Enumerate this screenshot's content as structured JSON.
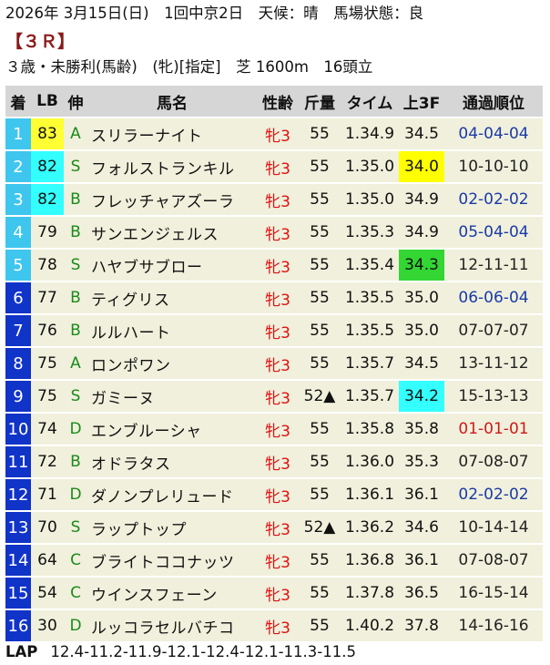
{
  "header": {
    "line1": "2026年 3月15日(日)　1回中京2日　天候：晴　馬場状態：良",
    "race": "【３Ｒ】",
    "line3": "３歳・未勝利(馬齢)　(牝)[指定]　芝 1600m　16頭立"
  },
  "columns": [
    "着",
    "LB",
    "伸",
    "馬名",
    "性齢",
    "斤量",
    "タイム",
    "上3F",
    "通過順位"
  ],
  "colors": {
    "frame": [
      "#3ec6ee",
      "#3ec6ee",
      "#3ec6ee",
      "#3ec6ee",
      "#3ec6ee",
      "#1033c8"
    ],
    "lb_yellow": "#ffff33",
    "lb_cyan": "#33ffff",
    "f3_yellow": "#ffff00",
    "f3_green": "#33d633",
    "f3_cyan": "#33ffff"
  },
  "rows": [
    {
      "rank": "1",
      "frame": "#3ec6ee",
      "lb": "83",
      "lb_hl": "yellow",
      "nobi": "A",
      "name": "スリラーナイト",
      "sex": "牝3",
      "weight": "55",
      "time": "1.34.9",
      "f3": "34.5",
      "f3_hl": "",
      "pos": "04-04-04",
      "pos_color": "blue"
    },
    {
      "rank": "2",
      "frame": "#3ec6ee",
      "lb": "82",
      "lb_hl": "cyan",
      "nobi": "S",
      "name": "フォルストランキル",
      "sex": "牝3",
      "weight": "55",
      "time": "1.35.0",
      "f3": "34.0",
      "f3_hl": "yellow",
      "pos": "10-10-10",
      "pos_color": ""
    },
    {
      "rank": "3",
      "frame": "#3ec6ee",
      "lb": "82",
      "lb_hl": "cyan",
      "nobi": "B",
      "name": "フレッチャアズーラ",
      "sex": "牝3",
      "weight": "55",
      "time": "1.35.0",
      "f3": "34.9",
      "f3_hl": "",
      "pos": "02-02-02",
      "pos_color": "blue"
    },
    {
      "rank": "4",
      "frame": "#3ec6ee",
      "lb": "79",
      "lb_hl": "",
      "nobi": "B",
      "name": "サンエンジェルス",
      "sex": "牝3",
      "weight": "55",
      "time": "1.35.3",
      "f3": "34.9",
      "f3_hl": "",
      "pos": "05-04-04",
      "pos_color": "blue"
    },
    {
      "rank": "5",
      "frame": "#3ec6ee",
      "lb": "78",
      "lb_hl": "",
      "nobi": "S",
      "name": "ハヤブサブロー",
      "sex": "牝3",
      "weight": "55",
      "time": "1.35.4",
      "f3": "34.3",
      "f3_hl": "green",
      "pos": "12-11-11",
      "pos_color": ""
    },
    {
      "rank": "6",
      "frame": "#1033c8",
      "lb": "77",
      "lb_hl": "",
      "nobi": "B",
      "name": "ティグリス",
      "sex": "牝3",
      "weight": "55",
      "time": "1.35.5",
      "f3": "35.0",
      "f3_hl": "",
      "pos": "06-06-04",
      "pos_color": "blue"
    },
    {
      "rank": "7",
      "frame": "#1033c8",
      "lb": "76",
      "lb_hl": "",
      "nobi": "B",
      "name": "ルルハート",
      "sex": "牝3",
      "weight": "55",
      "time": "1.35.5",
      "f3": "35.0",
      "f3_hl": "",
      "pos": "07-07-07",
      "pos_color": ""
    },
    {
      "rank": "8",
      "frame": "#1033c8",
      "lb": "75",
      "lb_hl": "",
      "nobi": "A",
      "name": "ロンポワン",
      "sex": "牝3",
      "weight": "55",
      "time": "1.35.7",
      "f3": "34.5",
      "f3_hl": "",
      "pos": "13-11-12",
      "pos_color": ""
    },
    {
      "rank": "9",
      "frame": "#1033c8",
      "lb": "75",
      "lb_hl": "",
      "nobi": "S",
      "name": "ガミーヌ",
      "sex": "牝3",
      "weight": "52▲",
      "time": "1.35.7",
      "f3": "34.2",
      "f3_hl": "cyan",
      "pos": "15-13-13",
      "pos_color": ""
    },
    {
      "rank": "10",
      "frame": "#1033c8",
      "lb": "74",
      "lb_hl": "",
      "nobi": "D",
      "name": "エンブルーシャ",
      "sex": "牝3",
      "weight": "55",
      "time": "1.35.8",
      "f3": "35.8",
      "f3_hl": "",
      "pos": "01-01-01",
      "pos_color": "red"
    },
    {
      "rank": "11",
      "frame": "#1033c8",
      "lb": "72",
      "lb_hl": "",
      "nobi": "B",
      "name": "オドラタス",
      "sex": "牝3",
      "weight": "55",
      "time": "1.36.0",
      "f3": "35.3",
      "f3_hl": "",
      "pos": "07-08-07",
      "pos_color": ""
    },
    {
      "rank": "12",
      "frame": "#1033c8",
      "lb": "71",
      "lb_hl": "",
      "nobi": "D",
      "name": "ダノンプレリュード",
      "sex": "牝3",
      "weight": "55",
      "time": "1.36.1",
      "f3": "36.1",
      "f3_hl": "",
      "pos": "02-02-02",
      "pos_color": "blue"
    },
    {
      "rank": "13",
      "frame": "#1033c8",
      "lb": "70",
      "lb_hl": "",
      "nobi": "S",
      "name": "ラップトップ",
      "sex": "牝3",
      "weight": "52▲",
      "time": "1.36.2",
      "f3": "34.6",
      "f3_hl": "",
      "pos": "10-14-14",
      "pos_color": ""
    },
    {
      "rank": "14",
      "frame": "#1033c8",
      "lb": "64",
      "lb_hl": "",
      "nobi": "C",
      "name": "ブライトココナッツ",
      "sex": "牝3",
      "weight": "55",
      "time": "1.36.8",
      "f3": "36.1",
      "f3_hl": "",
      "pos": "07-08-07",
      "pos_color": ""
    },
    {
      "rank": "15",
      "frame": "#1033c8",
      "lb": "54",
      "lb_hl": "",
      "nobi": "C",
      "name": "ウインスフェーン",
      "sex": "牝3",
      "weight": "55",
      "time": "1.37.8",
      "f3": "36.5",
      "f3_hl": "",
      "pos": "16-15-14",
      "pos_color": ""
    },
    {
      "rank": "16",
      "frame": "#1033c8",
      "lb": "30",
      "lb_hl": "",
      "nobi": "D",
      "name": "ルッコラセルバチコ",
      "sex": "牝3",
      "weight": "55",
      "time": "1.40.2",
      "f3": "37.8",
      "f3_hl": "",
      "pos": "14-16-16",
      "pos_color": ""
    }
  ],
  "lap": {
    "label": "LAP",
    "value": "12.4-11.2-11.9-12.1-12.4-12.1-11.3-11.5"
  }
}
